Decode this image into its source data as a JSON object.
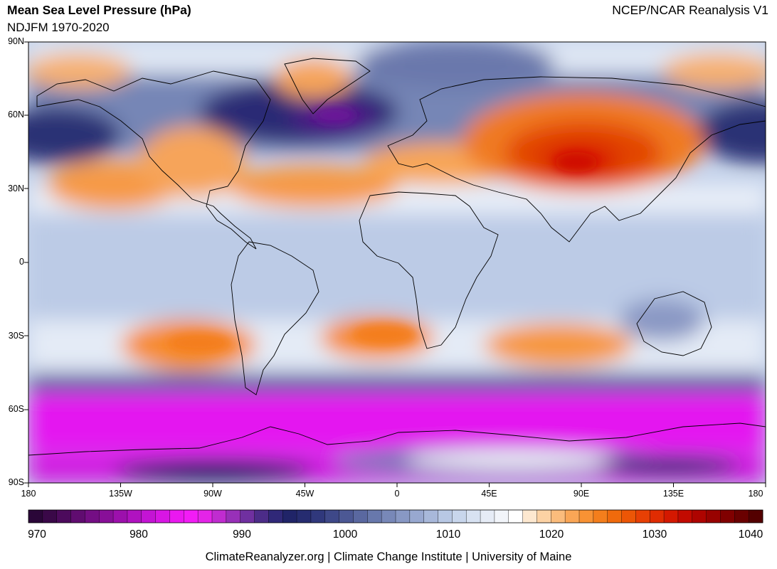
{
  "header": {
    "title": "Mean Sea Level Pressure (hPa)",
    "subtitle": "NDJFM 1970-2020",
    "source": "NCEP/NCAR Reanalysis V1"
  },
  "map": {
    "lat_labels": [
      "90N",
      "60N",
      "30N",
      "0",
      "30S",
      "60S",
      "90S"
    ],
    "lon_labels": [
      "180",
      "135W",
      "90W",
      "45W",
      "0",
      "45E",
      "90E",
      "135E",
      "180"
    ],
    "features": [
      {
        "name": "aleutian-low",
        "lon": -170,
        "lat": 52,
        "level": 1000
      },
      {
        "name": "icelandic-low",
        "lon": -32,
        "lat": 62,
        "level": 996
      },
      {
        "name": "siberian-high",
        "lon": 100,
        "lat": 47,
        "level": 1034
      },
      {
        "name": "north-pacific-high",
        "lon": -140,
        "lat": 33,
        "level": 1022
      },
      {
        "name": "azores-high",
        "lon": -25,
        "lat": 33,
        "level": 1022
      },
      {
        "name": "north-america-high",
        "lon": -110,
        "lat": 40,
        "level": 1020
      },
      {
        "name": "greenland-high",
        "lon": -40,
        "lat": 75,
        "level": 1022
      },
      {
        "name": "south-pacific-high",
        "lon": -100,
        "lat": -33,
        "level": 1022
      },
      {
        "name": "south-atlantic-high",
        "lon": -5,
        "lat": -30,
        "level": 1022
      },
      {
        "name": "indian-ocean-high",
        "lon": 80,
        "lat": -33,
        "level": 1022
      },
      {
        "name": "circumpolar-trough",
        "lon": 0,
        "lat": -63,
        "level": 982
      },
      {
        "name": "antarctic-interior",
        "lon": 60,
        "lat": -78,
        "level": 1015
      }
    ]
  },
  "colorbar": {
    "ticks": [
      "970",
      "980",
      "990",
      "1000",
      "1010",
      "1020",
      "1030",
      "1040"
    ],
    "levels": [
      970,
      1040
    ],
    "colors": [
      "#2a0638",
      "#3a0848",
      "#4c0a5c",
      "#600c70",
      "#740e84",
      "#880f98",
      "#9c10ac",
      "#b012c0",
      "#c414d4",
      "#d816e4",
      "#ea18f0",
      "#f21cf6",
      "#e424e8",
      "#c02cd0",
      "#9830b8",
      "#7030a0",
      "#4c2c88",
      "#302878",
      "#202468",
      "#262c70",
      "#30387c",
      "#3e4888",
      "#4c5894",
      "#5a68a0",
      "#6878ac",
      "#7888b8",
      "#8898c4",
      "#98a8d0",
      "#a8b8da",
      "#b8c8e4",
      "#c8d6ec",
      "#d8e2f2",
      "#e6ecf6",
      "#f2f5fa",
      "#ffffff",
      "#fde8d0",
      "#fcd2a4",
      "#fbbc7c",
      "#faa656",
      "#f89234",
      "#f47e1c",
      "#f06a0c",
      "#ec5606",
      "#e84004",
      "#e02c02",
      "#d41800",
      "#c20a00",
      "#ae0400",
      "#980200",
      "#800000",
      "#6a0000",
      "#540000"
    ]
  },
  "footer": "ClimateReanalyzer.org | Climate Change Institute | University of Maine"
}
